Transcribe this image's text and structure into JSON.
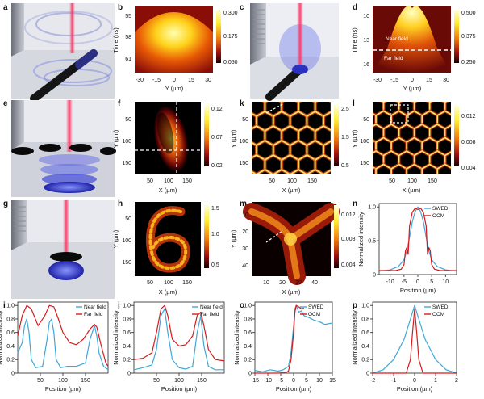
{
  "panels": {
    "a": "a",
    "b": "b",
    "c": "c",
    "d": "d",
    "e": "e",
    "f": "f",
    "k": "k",
    "l": "l",
    "g": "g",
    "h": "h",
    "m": "m",
    "n": "n",
    "i": "i",
    "j": "j",
    "o": "o",
    "p": "p"
  },
  "colors": {
    "blue": "#3fa7d6",
    "red": "#d7191c",
    "near": "#3fa7d6",
    "far": "#d7191c"
  },
  "maps": {
    "b": {
      "ylabel": "Time (ns)",
      "xlabel": "Y (µm)",
      "yticks": [
        "55",
        "58",
        "61"
      ],
      "xticks": [
        "-30",
        "-15",
        "0",
        "15",
        "30"
      ],
      "cbar": [
        "0.300",
        "0.175",
        "0.050"
      ]
    },
    "d": {
      "ylabel": "Time (ns)",
      "xlabel": "Y (µm)",
      "yticks": [
        "10",
        "13",
        "16"
      ],
      "xticks": [
        "-30",
        "-15",
        "0",
        "15",
        "30"
      ],
      "cbar": [
        "0.500",
        "0.375",
        "0.250"
      ],
      "near": "Near field",
      "far": "Far field"
    },
    "f": {
      "ylabel": "Y (µm)",
      "xlabel": "X (µm)",
      "yticks": [
        "50",
        "100",
        "150"
      ],
      "xticks": [
        "50",
        "100",
        "150"
      ],
      "cbar": [
        "0.12",
        "0.07",
        "0.02"
      ]
    },
    "k": {
      "ylabel": "Y (µm)",
      "xlabel": "X (µm)",
      "yticks": [
        "50",
        "100",
        "150"
      ],
      "xticks": [
        "50",
        "100",
        "150"
      ],
      "cbar": [
        "2.5",
        "1.5",
        "0.5"
      ]
    },
    "l": {
      "ylabel": "Y (µm)",
      "xlabel": "X (µm)",
      "yticks": [
        "50",
        "100",
        "150"
      ],
      "xticks": [
        "50",
        "100",
        "150"
      ],
      "cbar": [
        "0.012",
        "0.008",
        "0.004"
      ]
    },
    "h": {
      "ylabel": "Y (µm)",
      "xlabel": "X (µm)",
      "yticks": [
        "50",
        "100",
        "150"
      ],
      "xticks": [
        "50",
        "100",
        "150"
      ],
      "cbar": [
        "1.5",
        "1.0",
        "0.5"
      ]
    },
    "m": {
      "ylabel": "Y (µm)",
      "xlabel": "X (µm)",
      "yticks": [
        "10",
        "20",
        "30",
        "40"
      ],
      "xticks": [
        "10",
        "20",
        "30",
        "40"
      ],
      "cbar": [
        "0.012",
        "0.008",
        "0.004"
      ]
    }
  },
  "chart_data": [
    {
      "panel": "n",
      "type": "line",
      "xlabel": "Position (µm)",
      "ylabel": "Normalized intensity",
      "xticks": [
        "-10",
        "-5",
        "0",
        "5",
        "10"
      ],
      "yticks": [
        "0",
        "0.5",
        "1.0"
      ],
      "xlim": [
        -14,
        14
      ],
      "ylim": [
        0,
        1.05
      ],
      "series": [
        {
          "name": "SWED",
          "color": "#3fa7d6",
          "x": [
            -14,
            -10,
            -7,
            -5,
            -4,
            -3,
            -2,
            -1,
            0,
            1,
            2,
            3,
            4,
            5,
            7,
            10,
            14
          ],
          "y": [
            0.05,
            0.07,
            0.12,
            0.22,
            0.35,
            0.55,
            0.78,
            0.93,
            1.0,
            0.93,
            0.78,
            0.55,
            0.35,
            0.22,
            0.12,
            0.07,
            0.05
          ]
        },
        {
          "name": "OCM",
          "color": "#d7191c",
          "x": [
            -14,
            -8,
            -6,
            -5,
            -4.5,
            -4,
            -3.5,
            -3,
            -2,
            -1,
            0,
            1,
            2,
            3,
            3.5,
            4,
            4.5,
            5,
            6,
            8,
            14
          ],
          "y": [
            0.06,
            0.06,
            0.08,
            0.15,
            0.35,
            0.4,
            0.3,
            0.72,
            0.92,
            0.98,
            0.96,
            0.98,
            0.92,
            0.72,
            0.3,
            0.4,
            0.35,
            0.15,
            0.08,
            0.06,
            0.06
          ]
        }
      ]
    },
    {
      "panel": "i",
      "type": "line",
      "xlabel": "Position (µm)",
      "ylabel": "Normalized intensity",
      "xticks": [
        "50",
        "100",
        "150"
      ],
      "yticks": [
        "0",
        "0.2",
        "0.4",
        "0.6",
        "0.8",
        "1.0"
      ],
      "xlim": [
        0,
        200
      ],
      "ylim": [
        0,
        1.05
      ],
      "series": [
        {
          "name": "Near field",
          "color": "#3fa7d6",
          "x": [
            0,
            10,
            15,
            20,
            25,
            30,
            40,
            55,
            65,
            70,
            75,
            80,
            85,
            95,
            110,
            130,
            150,
            160,
            170,
            175,
            180,
            190,
            200
          ],
          "y": [
            0.3,
            0.45,
            0.7,
            0.8,
            0.6,
            0.2,
            0.08,
            0.1,
            0.5,
            0.75,
            0.8,
            0.6,
            0.2,
            0.08,
            0.1,
            0.1,
            0.15,
            0.5,
            0.7,
            0.55,
            0.3,
            0.1,
            0.05
          ]
        },
        {
          "name": "Far field",
          "color": "#d7191c",
          "x": [
            0,
            10,
            20,
            30,
            45,
            60,
            70,
            80,
            90,
            100,
            115,
            130,
            145,
            160,
            170,
            175,
            185,
            195,
            200
          ],
          "y": [
            0.55,
            0.85,
            1.0,
            0.95,
            0.7,
            0.85,
            1.0,
            0.98,
            0.8,
            0.6,
            0.45,
            0.42,
            0.5,
            0.65,
            0.72,
            0.68,
            0.4,
            0.15,
            0.1
          ]
        }
      ]
    },
    {
      "panel": "j",
      "type": "line",
      "xlabel": "Position (µm)",
      "ylabel": "Normalized intensity",
      "xticks": [
        "50",
        "100",
        "150"
      ],
      "yticks": [
        "0",
        "0.2",
        "0.4",
        "0.6",
        "0.8",
        "1.0"
      ],
      "xlim": [
        0,
        200
      ],
      "ylim": [
        0,
        1.05
      ],
      "series": [
        {
          "name": "Near field",
          "color": "#3fa7d6",
          "x": [
            0,
            20,
            40,
            50,
            60,
            68,
            75,
            85,
            100,
            115,
            130,
            140,
            148,
            155,
            165,
            180,
            200
          ],
          "y": [
            0.05,
            0.08,
            0.12,
            0.35,
            0.85,
            0.95,
            0.6,
            0.2,
            0.08,
            0.06,
            0.1,
            0.6,
            0.85,
            0.4,
            0.1,
            0.05,
            0.05
          ]
        },
        {
          "name": "Far field",
          "color": "#d7191c",
          "x": [
            0,
            20,
            40,
            50,
            60,
            68,
            75,
            85,
            100,
            115,
            130,
            140,
            148,
            155,
            165,
            180,
            200
          ],
          "y": [
            0.2,
            0.22,
            0.3,
            0.6,
            0.95,
            1.0,
            0.85,
            0.5,
            0.4,
            0.42,
            0.55,
            0.85,
            0.9,
            0.7,
            0.35,
            0.2,
            0.18
          ]
        }
      ]
    },
    {
      "panel": "o",
      "type": "line",
      "xlabel": "Position (µm)",
      "ylabel": "Normalized intensity",
      "xticks": [
        "-15",
        "-10",
        "-5",
        "0",
        "5",
        "10",
        "15"
      ],
      "yticks": [
        "0",
        "0.2",
        "0.4",
        "0.6",
        "0.8",
        "1.0"
      ],
      "xlim": [
        -15,
        15
      ],
      "ylim": [
        0,
        1.05
      ],
      "series": [
        {
          "name": "SWED",
          "color": "#3fa7d6",
          "x": [
            -15,
            -12,
            -9,
            -6,
            -4,
            -2,
            -1,
            0,
            0.5,
            1,
            2,
            3,
            4,
            6,
            8,
            10,
            12,
            15
          ],
          "y": [
            0.04,
            0.02,
            0.05,
            0.03,
            0.05,
            0.1,
            0.3,
            0.7,
            0.95,
            1.0,
            0.9,
            0.92,
            0.85,
            0.82,
            0.78,
            0.76,
            0.72,
            0.74
          ]
        },
        {
          "name": "OCM",
          "color": "#d7191c",
          "x": [
            -15,
            -6,
            -3,
            -2,
            -1,
            0,
            0.5,
            1,
            2,
            3,
            4
          ],
          "y": [
            0,
            0,
            0.01,
            0.03,
            0.2,
            0.6,
            0.9,
            1.0,
            0.98,
            0.95,
            0.96
          ]
        }
      ]
    },
    {
      "panel": "p",
      "type": "line",
      "xlabel": "Position (µm)",
      "ylabel": "Normalized intensity",
      "xticks": [
        "-2",
        "-1",
        "0",
        "1",
        "2"
      ],
      "yticks": [
        "0",
        "0.2",
        "0.4",
        "0.6",
        "0.8",
        "1.0"
      ],
      "xlim": [
        -2,
        2
      ],
      "ylim": [
        0,
        1.05
      ],
      "series": [
        {
          "name": "SWED",
          "color": "#3fa7d6",
          "x": [
            -2,
            -1.5,
            -1,
            -0.5,
            -0.2,
            0,
            0.2,
            0.5,
            1,
            1.5,
            2
          ],
          "y": [
            0.0,
            0.05,
            0.2,
            0.5,
            0.8,
            1.0,
            0.8,
            0.5,
            0.2,
            0.05,
            0.0
          ]
        },
        {
          "name": "OCM",
          "color": "#d7191c",
          "x": [
            -2,
            -0.4,
            -0.2,
            -0.1,
            0,
            0.1,
            0.2,
            0.4,
            2
          ],
          "y": [
            0,
            0,
            0.2,
            0.6,
            0.95,
            0.6,
            0.2,
            0,
            0
          ]
        }
      ]
    }
  ]
}
